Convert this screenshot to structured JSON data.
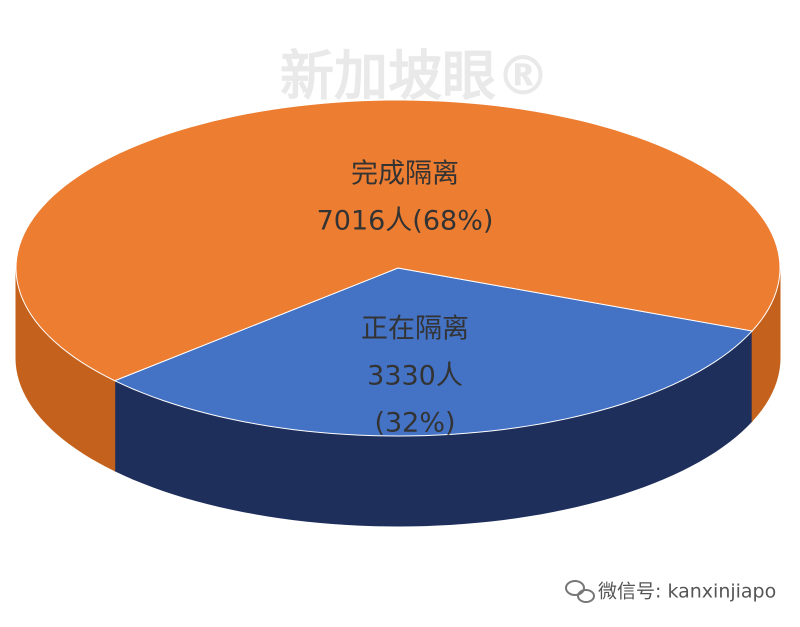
{
  "watermark": "新加坡眼®",
  "footer": "微信号: kanxinjiapo",
  "chart_data": {
    "type": "pie3d",
    "categories": [
      "完成隔离",
      "正在隔离"
    ],
    "values": [
      7016,
      3330
    ],
    "value_labels": [
      [
        "7016人(68%)"
      ],
      [
        "3330人",
        "(32%)"
      ]
    ],
    "colors": [
      "#ed7d31",
      "#4472c4"
    ]
  }
}
